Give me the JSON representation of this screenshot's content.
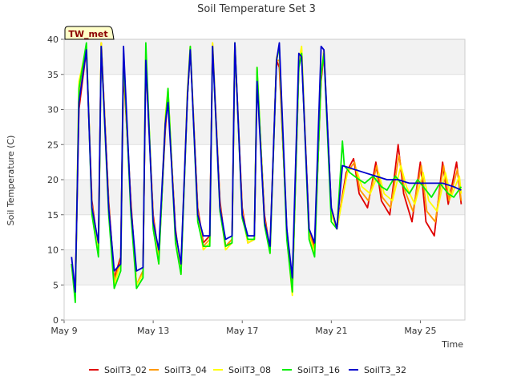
{
  "chart_data": {
    "type": "line",
    "title": "Soil Temperature Set 3",
    "xlabel": "Time",
    "ylabel": "Soil Temperature (C)",
    "badge": "TW_met",
    "xlim": [
      "2019-05-09",
      "2019-05-27"
    ],
    "ylim": [
      0,
      40
    ],
    "xticks": [
      {
        "label": "May 9",
        "date": "2019-05-09"
      },
      {
        "label": "May 13",
        "date": "2019-05-13"
      },
      {
        "label": "May 17",
        "date": "2019-05-17"
      },
      {
        "label": "May 21",
        "date": "2019-05-21"
      },
      {
        "label": "May 25",
        "date": "2019-05-25"
      }
    ],
    "yticks": [
      0,
      5,
      10,
      15,
      20,
      25,
      30,
      35,
      40
    ],
    "grid": "horizontal shaded bands",
    "legend_position": "bottom",
    "series": [
      {
        "name": "SoilT3_02",
        "color": "#e00000",
        "x": [
          "2019-05-09 08:00",
          "2019-05-09 12:00",
          "2019-05-09 16:00",
          "2019-05-10 00:00",
          "2019-05-10 06:00",
          "2019-05-10 13:00",
          "2019-05-10 16:00",
          "2019-05-11 00:00",
          "2019-05-11 06:00",
          "2019-05-11 13:00",
          "2019-05-11 16:00",
          "2019-05-12 00:00",
          "2019-05-12 06:00",
          "2019-05-12 13:00",
          "2019-05-12 16:00",
          "2019-05-13 00:00",
          "2019-05-13 06:00",
          "2019-05-13 13:00",
          "2019-05-13 16:00",
          "2019-05-14 00:00",
          "2019-05-14 06:00",
          "2019-05-14 13:00",
          "2019-05-14 16:00",
          "2019-05-15 00:00",
          "2019-05-15 06:00",
          "2019-05-15 13:00",
          "2019-05-15 16:00",
          "2019-05-16 00:00",
          "2019-05-16 06:00",
          "2019-05-16 13:00",
          "2019-05-16 16:00",
          "2019-05-17 00:00",
          "2019-05-17 06:00",
          "2019-05-17 13:00",
          "2019-05-17 16:00",
          "2019-05-18 00:00",
          "2019-05-18 06:00",
          "2019-05-18 13:00",
          "2019-05-18 16:00",
          "2019-05-19 00:00",
          "2019-05-19 06:00",
          "2019-05-19 13:00",
          "2019-05-19 16:00",
          "2019-05-20 00:00",
          "2019-05-20 06:00",
          "2019-05-20 13:00",
          "2019-05-20 16:00",
          "2019-05-21 00:00",
          "2019-05-21 06:00",
          "2019-05-21 16:00",
          "2019-05-22 00:00",
          "2019-05-22 06:00",
          "2019-05-22 15:00",
          "2019-05-23 00:00",
          "2019-05-23 06:00",
          "2019-05-23 15:00",
          "2019-05-24 00:00",
          "2019-05-24 06:00",
          "2019-05-24 15:00",
          "2019-05-25 00:00",
          "2019-05-25 06:00",
          "2019-05-25 15:00",
          "2019-05-26 00:00",
          "2019-05-26 06:00",
          "2019-05-26 15:00",
          "2019-05-26 20:00"
        ],
        "y": [
          8,
          4,
          30,
          38.5,
          17,
          10,
          39.5,
          17,
          6,
          9,
          35.5,
          17,
          5,
          7,
          37,
          15,
          9,
          27,
          32,
          13,
          7,
          32,
          38.5,
          16,
          11,
          12,
          39,
          17,
          10.5,
          11.5,
          39,
          16,
          11,
          11.5,
          35,
          15,
          10,
          37,
          36,
          13,
          4,
          36,
          38,
          13,
          10.5,
          34,
          38,
          16,
          13,
          21,
          23,
          18,
          16,
          22.5,
          17,
          15,
          25,
          18,
          14,
          22.5,
          14,
          12,
          22.5,
          16.5,
          22.5,
          16.5
        ]
      },
      {
        "name": "SoilT3_04",
        "color": "#ff9900",
        "x": [
          "2019-05-09 08:00",
          "2019-05-09 12:00",
          "2019-05-09 16:00",
          "2019-05-10 00:00",
          "2019-05-10 06:00",
          "2019-05-10 13:00",
          "2019-05-10 16:00",
          "2019-05-11 00:00",
          "2019-05-11 06:00",
          "2019-05-11 13:00",
          "2019-05-11 16:00",
          "2019-05-12 00:00",
          "2019-05-12 06:00",
          "2019-05-12 13:00",
          "2019-05-12 16:00",
          "2019-05-13 00:00",
          "2019-05-13 06:00",
          "2019-05-13 13:00",
          "2019-05-13 16:00",
          "2019-05-14 00:00",
          "2019-05-14 06:00",
          "2019-05-14 13:00",
          "2019-05-14 16:00",
          "2019-05-15 00:00",
          "2019-05-15 06:00",
          "2019-05-15 13:00",
          "2019-05-15 16:00",
          "2019-05-16 00:00",
          "2019-05-16 06:00",
          "2019-05-16 13:00",
          "2019-05-16 16:00",
          "2019-05-17 00:00",
          "2019-05-17 06:00",
          "2019-05-17 13:00",
          "2019-05-17 16:00",
          "2019-05-18 00:00",
          "2019-05-18 06:00",
          "2019-05-18 13:00",
          "2019-05-18 16:00",
          "2019-05-19 00:00",
          "2019-05-19 06:00",
          "2019-05-19 13:00",
          "2019-05-19 16:00",
          "2019-05-20 00:00",
          "2019-05-20 06:00",
          "2019-05-20 13:00",
          "2019-05-20 16:00",
          "2019-05-21 00:00",
          "2019-05-21 06:00",
          "2019-05-21 17:00",
          "2019-05-22 01:00",
          "2019-05-22 07:00",
          "2019-05-22 16:00",
          "2019-05-23 01:00",
          "2019-05-23 07:00",
          "2019-05-23 16:00",
          "2019-05-24 01:00",
          "2019-05-24 07:00",
          "2019-05-24 16:00",
          "2019-05-25 01:00",
          "2019-05-25 07:00",
          "2019-05-25 16:00",
          "2019-05-26 01:00",
          "2019-05-26 07:00",
          "2019-05-26 16:00",
          "2019-05-26 20:00"
        ],
        "y": [
          8,
          3.5,
          32,
          38.5,
          16.5,
          10,
          39.5,
          16.5,
          5.5,
          8.5,
          36.5,
          16.5,
          5,
          7,
          37.5,
          14.5,
          8.5,
          28,
          32.5,
          12.5,
          7,
          32.5,
          39,
          15.5,
          10.5,
          11.5,
          39.5,
          16.5,
          10.5,
          11.5,
          39.5,
          15.5,
          11,
          11.5,
          35.5,
          14.5,
          10,
          37,
          37,
          12.5,
          4,
          36.5,
          38.5,
          12.5,
          10,
          34.5,
          38.5,
          15.5,
          13,
          21,
          22.5,
          18.5,
          17,
          22,
          17.5,
          16,
          23.5,
          18.5,
          15.5,
          22,
          15.5,
          14,
          22,
          17,
          21.5,
          17
        ]
      },
      {
        "name": "SoilT3_08",
        "color": "#ffff00",
        "x": [
          "2019-05-09 08:00",
          "2019-05-09 12:00",
          "2019-05-09 16:00",
          "2019-05-10 00:00",
          "2019-05-10 06:00",
          "2019-05-10 13:00",
          "2019-05-10 16:00",
          "2019-05-11 00:00",
          "2019-05-11 06:00",
          "2019-05-11 13:00",
          "2019-05-11 16:00",
          "2019-05-12 00:00",
          "2019-05-12 06:00",
          "2019-05-12 13:00",
          "2019-05-12 16:00",
          "2019-05-13 00:00",
          "2019-05-13 06:00",
          "2019-05-13 13:00",
          "2019-05-13 16:00",
          "2019-05-14 00:00",
          "2019-05-14 06:00",
          "2019-05-14 13:00",
          "2019-05-14 16:00",
          "2019-05-15 00:00",
          "2019-05-15 06:00",
          "2019-05-15 13:00",
          "2019-05-15 16:00",
          "2019-05-16 00:00",
          "2019-05-16 06:00",
          "2019-05-16 13:00",
          "2019-05-16 16:00",
          "2019-05-17 00:00",
          "2019-05-17 06:00",
          "2019-05-17 13:00",
          "2019-05-17 16:00",
          "2019-05-18 00:00",
          "2019-05-18 06:00",
          "2019-05-18 13:00",
          "2019-05-18 16:00",
          "2019-05-19 00:00",
          "2019-05-19 06:00",
          "2019-05-19 13:00",
          "2019-05-19 16:00",
          "2019-05-20 00:00",
          "2019-05-20 06:00",
          "2019-05-20 13:00",
          "2019-05-20 16:00",
          "2019-05-21 00:00",
          "2019-05-21 06:00",
          "2019-05-21 18:00",
          "2019-05-22 03:00",
          "2019-05-22 09:00",
          "2019-05-22 18:00",
          "2019-05-23 03:00",
          "2019-05-23 09:00",
          "2019-05-23 18:00",
          "2019-05-24 03:00",
          "2019-05-24 09:00",
          "2019-05-24 18:00",
          "2019-05-25 03:00",
          "2019-05-25 09:00",
          "2019-05-25 18:00",
          "2019-05-26 03:00",
          "2019-05-26 09:00",
          "2019-05-26 18:00",
          "2019-05-26 20:00"
        ],
        "y": [
          8,
          3,
          34,
          39,
          16,
          9.5,
          39.5,
          16,
          5,
          8,
          37.5,
          16,
          5,
          6.5,
          38.5,
          14,
          8,
          29,
          33,
          12,
          6.5,
          33,
          39,
          15,
          10,
          11,
          39.5,
          16,
          10,
          11,
          39.5,
          15,
          11,
          11.5,
          36,
          14,
          9.5,
          37.5,
          38.5,
          12,
          3.5,
          37,
          39,
          12,
          9.5,
          35,
          38.5,
          15,
          13,
          21.5,
          21.5,
          19,
          18,
          21,
          18,
          17,
          22,
          19,
          16.5,
          21,
          17,
          15.5,
          21,
          17.5,
          20.5,
          18
        ]
      },
      {
        "name": "SoilT3_16",
        "color": "#00ee00",
        "x": [
          "2019-05-09 08:00",
          "2019-05-09 12:00",
          "2019-05-09 16:00",
          "2019-05-10 00:00",
          "2019-05-10 06:00",
          "2019-05-10 13:00",
          "2019-05-10 16:00",
          "2019-05-11 00:00",
          "2019-05-11 06:00",
          "2019-05-11 13:00",
          "2019-05-11 16:00",
          "2019-05-12 00:00",
          "2019-05-12 06:00",
          "2019-05-12 13:00",
          "2019-05-12 16:00",
          "2019-05-13 00:00",
          "2019-05-13 06:00",
          "2019-05-13 13:00",
          "2019-05-13 16:00",
          "2019-05-14 00:00",
          "2019-05-14 06:00",
          "2019-05-14 13:00",
          "2019-05-14 16:00",
          "2019-05-15 00:00",
          "2019-05-15 06:00",
          "2019-05-15 13:00",
          "2019-05-15 16:00",
          "2019-05-16 00:00",
          "2019-05-16 06:00",
          "2019-05-16 13:00",
          "2019-05-16 16:00",
          "2019-05-17 00:00",
          "2019-05-17 06:00",
          "2019-05-17 13:00",
          "2019-05-17 16:00",
          "2019-05-18 00:00",
          "2019-05-18 06:00",
          "2019-05-18 13:00",
          "2019-05-18 16:00",
          "2019-05-19 00:00",
          "2019-05-19 06:00",
          "2019-05-19 13:00",
          "2019-05-19 16:00",
          "2019-05-20 00:00",
          "2019-05-20 06:00",
          "2019-05-20 13:00",
          "2019-05-20 16:00",
          "2019-05-21 00:00",
          "2019-05-21 06:00",
          "2019-05-21 12:00",
          "2019-05-21 14:00",
          "2019-05-21 20:00",
          "2019-05-22 06:00",
          "2019-05-22 12:00",
          "2019-05-22 21:00",
          "2019-05-23 06:00",
          "2019-05-23 12:00",
          "2019-05-23 21:00",
          "2019-05-24 06:00",
          "2019-05-24 12:00",
          "2019-05-24 21:00",
          "2019-05-25 06:00",
          "2019-05-25 12:00",
          "2019-05-25 21:00",
          "2019-05-26 06:00",
          "2019-05-26 12:00",
          "2019-05-26 20:00"
        ],
        "y": [
          8,
          2.5,
          33,
          39.5,
          15,
          9,
          39,
          15,
          4.5,
          7,
          38,
          15,
          4.5,
          6,
          39.5,
          13,
          8,
          28,
          33,
          11,
          6.5,
          32,
          39,
          14,
          10.5,
          10.5,
          39,
          15.5,
          10.5,
          11,
          39.5,
          14.5,
          11.5,
          11.5,
          36,
          13.5,
          9.5,
          37,
          39,
          11.5,
          4,
          36,
          38,
          11.5,
          9,
          35,
          38,
          14,
          13,
          25.5,
          22,
          21,
          20,
          19.5,
          20.5,
          19,
          18.5,
          20.5,
          19,
          18,
          20,
          18.5,
          17.5,
          19.5,
          18,
          17.5,
          19
        ]
      },
      {
        "name": "SoilT3_32",
        "color": "#0000cc",
        "x": [
          "2019-05-09 08:00",
          "2019-05-09 12:00",
          "2019-05-09 16:00",
          "2019-05-10 00:00",
          "2019-05-10 06:00",
          "2019-05-10 13:00",
          "2019-05-10 16:00",
          "2019-05-11 00:00",
          "2019-05-11 06:00",
          "2019-05-11 13:00",
          "2019-05-11 16:00",
          "2019-05-12 00:00",
          "2019-05-12 06:00",
          "2019-05-12 13:00",
          "2019-05-12 16:00",
          "2019-05-13 00:00",
          "2019-05-13 06:00",
          "2019-05-13 13:00",
          "2019-05-13 16:00",
          "2019-05-14 00:00",
          "2019-05-14 06:00",
          "2019-05-14 13:00",
          "2019-05-14 16:00",
          "2019-05-15 00:00",
          "2019-05-15 06:00",
          "2019-05-15 13:00",
          "2019-05-15 16:00",
          "2019-05-16 00:00",
          "2019-05-16 06:00",
          "2019-05-16 13:00",
          "2019-05-16 16:00",
          "2019-05-17 00:00",
          "2019-05-17 06:00",
          "2019-05-17 13:00",
          "2019-05-17 16:00",
          "2019-05-18 00:00",
          "2019-05-18 06:00",
          "2019-05-18 13:00",
          "2019-05-18 16:00",
          "2019-05-19 00:00",
          "2019-05-19 06:00",
          "2019-05-19 13:00",
          "2019-05-19 16:00",
          "2019-05-20 00:00",
          "2019-05-20 06:00",
          "2019-05-20 13:00",
          "2019-05-20 16:00",
          "2019-05-21 00:00",
          "2019-05-21 06:00",
          "2019-05-21 12:00",
          "2019-05-22 00:00",
          "2019-05-22 12:00",
          "2019-05-23 00:00",
          "2019-05-23 12:00",
          "2019-05-24 00:00",
          "2019-05-24 12:00",
          "2019-05-25 00:00",
          "2019-05-25 12:00",
          "2019-05-26 00:00",
          "2019-05-26 12:00",
          "2019-05-26 20:00"
        ],
        "y": [
          9,
          4,
          31,
          38.5,
          16,
          11,
          39,
          16,
          7,
          8,
          39,
          16,
          7,
          7.5,
          37,
          14,
          10,
          28,
          31,
          12.5,
          8,
          32,
          38.5,
          15,
          12,
          12,
          39,
          16,
          11.5,
          12,
          39.5,
          15,
          12,
          12,
          34,
          14,
          10.5,
          37,
          39.5,
          13,
          6,
          38,
          37.5,
          13,
          11,
          39,
          38.5,
          16,
          13,
          22,
          21.5,
          21,
          20.5,
          20,
          20,
          19.5,
          19.5,
          19.5,
          19.5,
          19,
          18.5
        ]
      }
    ]
  }
}
